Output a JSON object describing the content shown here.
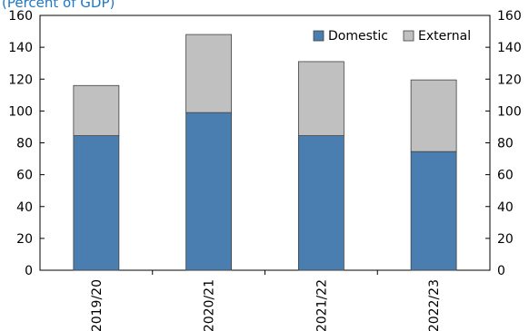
{
  "chart_data": {
    "type": "bar",
    "stacked": true,
    "subtitle": "(Percent of GDP)",
    "categories": [
      "2019/20",
      "2020/21",
      "2021/22",
      "2022/23"
    ],
    "series": [
      {
        "name": "Domestic",
        "color": "#4a7eb0",
        "values": [
          84.5,
          99,
          84.5,
          74.5
        ]
      },
      {
        "name": "External",
        "color": "#c0c0c0",
        "values": [
          31.5,
          49,
          46.5,
          45
        ]
      }
    ],
    "ylim": [
      0,
      160
    ],
    "yticks": [
      "0",
      "20",
      "40",
      "60",
      "80",
      "100",
      "120",
      "140",
      "160"
    ],
    "legend_position": "top-right",
    "grid": false,
    "secondary_y_axis": true
  }
}
